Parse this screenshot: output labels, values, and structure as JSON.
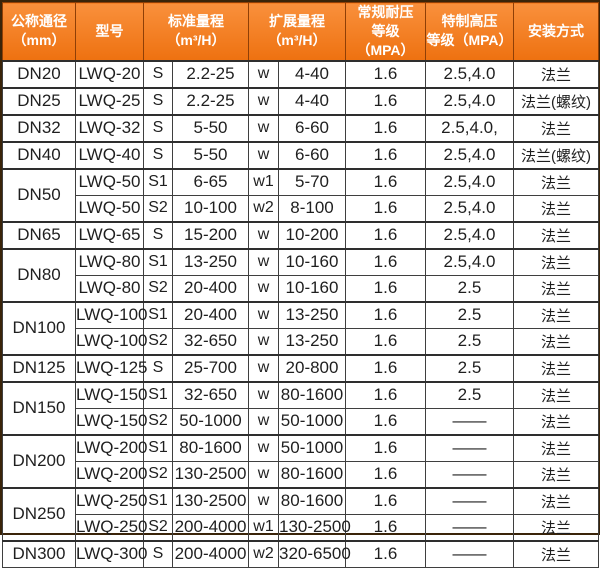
{
  "theme": {
    "header_orange_top": "#f9903c",
    "header_orange_bottom": "#ee7110",
    "header_cell_border": "#8f3f06",
    "header_text": "#ffffff",
    "frame_border": "#3a2409",
    "grid_line": "#3f3f3f",
    "group_divider": "#2e2e2e",
    "row_divider": "#6a6a6a",
    "body_text": "#1f1f1f",
    "body_bg": "#ffffff"
  },
  "table": {
    "columns": [
      {
        "id": "dn",
        "label": "公称通径\n（mm）",
        "colspan": 1
      },
      {
        "id": "model",
        "label": "型号",
        "colspan": 1
      },
      {
        "id": "std",
        "label": "标准量程\n（m³/H）",
        "colspan": 2
      },
      {
        "id": "ext",
        "label": "扩展量程\n（m³/H）",
        "colspan": 2
      },
      {
        "id": "pressure-normal",
        "label": "常规耐压\n等级（MPA）",
        "colspan": 1
      },
      {
        "id": "pressure-high",
        "label": "特制高压\n等级（MPA）",
        "colspan": 1
      },
      {
        "id": "install",
        "label": "安装方式",
        "colspan": 1
      }
    ],
    "groups": [
      {
        "dn": "DN20",
        "rows": [
          [
            "LWQ-20",
            "S",
            "2.2-25",
            "w",
            "4-40",
            "1.6",
            "2.5,4.0",
            "法兰"
          ]
        ]
      },
      {
        "dn": "DN25",
        "rows": [
          [
            "LWQ-25",
            "S",
            "2.2-25",
            "w",
            "4-40",
            "1.6",
            "2.5,4.0",
            "法兰(螺纹)"
          ]
        ]
      },
      {
        "dn": "DN32",
        "rows": [
          [
            "LWQ-32",
            "S",
            "5-50",
            "w",
            "6-60",
            "1.6",
            "2.5,4.0,",
            "法兰"
          ]
        ]
      },
      {
        "dn": "DN40",
        "rows": [
          [
            "LWQ-40",
            "S",
            "5-50",
            "w",
            "6-60",
            "1.6",
            "2.5,4.0",
            "法兰(螺纹)"
          ]
        ]
      },
      {
        "dn": "DN50",
        "rows": [
          [
            "LWQ-50",
            "S1",
            "6-65",
            "w1",
            "5-70",
            "1.6",
            "2.5,4.0",
            "法兰"
          ],
          [
            "LWQ-50",
            "S2",
            "10-100",
            "w2",
            "8-100",
            "1.6",
            "2.5,4.0",
            "法兰"
          ]
        ]
      },
      {
        "dn": "DN65",
        "rows": [
          [
            "LWQ-65",
            "S",
            "15-200",
            "w",
            "10-200",
            "1.6",
            "2.5,4.0",
            "法兰"
          ]
        ]
      },
      {
        "dn": "DN80",
        "rows": [
          [
            "LWQ-80",
            "S1",
            "13-250",
            "w",
            "10-160",
            "1.6",
            "2.5,4.0",
            "法兰"
          ],
          [
            "LWQ-80",
            "S2",
            "20-400",
            "w",
            "10-160",
            "1.6",
            "2.5",
            "法兰"
          ]
        ]
      },
      {
        "dn": "DN100",
        "rows": [
          [
            "LWQ-100",
            "S1",
            "20-400",
            "w",
            "13-250",
            "1.6",
            "2.5",
            "法兰"
          ],
          [
            "LWQ-100",
            "S2",
            "32-650",
            "w",
            "13-250",
            "1.6",
            "2.5",
            "法兰"
          ]
        ]
      },
      {
        "dn": "DN125",
        "rows": [
          [
            "LWQ-125",
            "S",
            "25-700",
            "w",
            "20-800",
            "1.6",
            "2.5",
            "法兰"
          ]
        ]
      },
      {
        "dn": "DN150",
        "rows": [
          [
            "LWQ-150",
            "S1",
            "32-650",
            "w",
            "80-1600",
            "1.6",
            "2.5",
            "法兰"
          ],
          [
            "LWQ-150",
            "S2",
            "50-1000",
            "w",
            "50-1000",
            "1.6",
            "——",
            "法兰"
          ]
        ]
      },
      {
        "dn": "DN200",
        "rows": [
          [
            "LWQ-200",
            "S1",
            "80-1600",
            "w",
            "50-1000",
            "1.6",
            "——",
            "法兰"
          ],
          [
            "LWQ-200",
            "S2",
            "130-2500",
            "w",
            "80-1600",
            "1.6",
            "——",
            "法兰"
          ]
        ]
      },
      {
        "dn": "DN250",
        "rows": [
          [
            "LWQ-250",
            "S1",
            "130-2500",
            "w",
            "80-1600",
            "1.6",
            "——",
            "法兰"
          ],
          [
            "LWQ-250",
            "S2",
            "200-4000",
            "w1",
            "130-2500",
            "1.6",
            "——",
            "法兰"
          ]
        ]
      },
      {
        "dn": "DN300",
        "rows": [
          [
            "LWQ-300",
            "S",
            "200-4000",
            "w2",
            "320-6500",
            "1.6",
            "——",
            "法兰"
          ]
        ]
      }
    ]
  }
}
